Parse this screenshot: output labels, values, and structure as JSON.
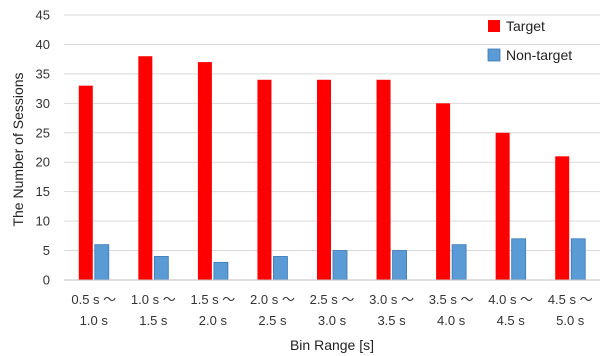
{
  "chart_data": {
    "type": "bar",
    "categories": [
      [
        "0.5 s 〜",
        "1.0 s"
      ],
      [
        "1.0 s 〜",
        "1.5 s"
      ],
      [
        "1.5 s 〜",
        "2.0 s"
      ],
      [
        "2.0 s 〜",
        "2.5 s"
      ],
      [
        "2.5 s 〜",
        "3.0 s"
      ],
      [
        "3.0 s 〜",
        "3.5 s"
      ],
      [
        "3.5 s 〜",
        "4.0 s"
      ],
      [
        "4.0 s 〜",
        "4.5 s"
      ],
      [
        "4.5 s 〜",
        "5.0 s"
      ]
    ],
    "series": [
      {
        "name": "Target",
        "color": "#ff0000",
        "values": [
          33,
          38,
          37,
          34,
          34,
          34,
          30,
          25,
          21
        ]
      },
      {
        "name": "Non-target",
        "color": "#5b9bd5",
        "values": [
          6,
          4,
          3,
          4,
          5,
          5,
          6,
          7,
          7
        ]
      }
    ],
    "xlabel": "Bin Range [s]",
    "ylabel": "The Number of Sessions",
    "ylim": [
      0,
      45
    ],
    "yticks": [
      0,
      5,
      10,
      15,
      20,
      25,
      30,
      35,
      40,
      45
    ],
    "grid": true,
    "legend": "top-right"
  }
}
